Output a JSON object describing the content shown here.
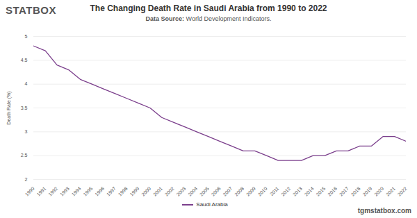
{
  "logo": "STATBOX",
  "footer": "tgmstatbox.com",
  "chart_data": {
    "type": "line",
    "title": "The Changing Death Rate in Saudi Arabia from 1990 to 2022",
    "subtitle": "Data Source: World Development Indicators.",
    "y_label": "Death Rate (%)",
    "x": [
      1990,
      1991,
      1992,
      1993,
      1994,
      1995,
      1996,
      1997,
      1998,
      1999,
      2000,
      2001,
      2002,
      2003,
      2004,
      2005,
      2006,
      2007,
      2008,
      2009,
      2010,
      2011,
      2012,
      2013,
      2014,
      2015,
      2016,
      2017,
      2018,
      2019,
      2020,
      2021,
      2022
    ],
    "series": [
      {
        "name": "Saudi Arabia",
        "color": "#7b3f8c",
        "values": [
          4.8,
          4.7,
          4.4,
          4.3,
          4.1,
          4.0,
          3.9,
          3.8,
          3.7,
          3.6,
          3.5,
          3.3,
          3.2,
          3.1,
          3.0,
          2.9,
          2.8,
          2.7,
          2.6,
          2.6,
          2.5,
          2.4,
          2.4,
          2.4,
          2.5,
          2.5,
          2.6,
          2.6,
          2.7,
          2.7,
          2.9,
          2.9,
          2.8
        ]
      }
    ],
    "xlim": [
      1990,
      2022
    ],
    "xticks": [
      1990,
      1991,
      1992,
      1993,
      1994,
      1995,
      1996,
      1997,
      1998,
      1999,
      2000,
      2001,
      2002,
      2003,
      2004,
      2005,
      2006,
      2007,
      2008,
      2009,
      2010,
      2011,
      2012,
      2013,
      2014,
      2015,
      2016,
      2017,
      2018,
      2019,
      2020,
      2021,
      2022
    ],
    "ylim": [
      2,
      5
    ],
    "yticks": [
      2,
      2.5,
      3,
      3.5,
      4,
      4.5,
      5
    ],
    "grid": true,
    "legend": "bottom"
  }
}
